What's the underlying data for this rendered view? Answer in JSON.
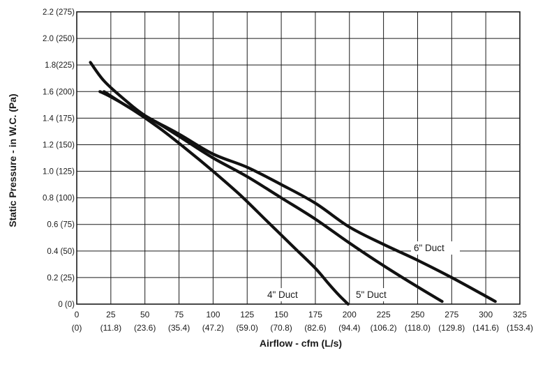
{
  "chart_data": {
    "type": "line",
    "xlabel": "Airflow - cfm (L/s)",
    "ylabel": "Static Pressure - in W.C. (Pa)",
    "xlim": [
      0,
      325
    ],
    "ylim": [
      0,
      2.2
    ],
    "grid": true,
    "x_ticks": [
      {
        "value": 0,
        "primary": "0",
        "secondary": "(0)"
      },
      {
        "value": 25,
        "primary": "25",
        "secondary": "(11.8)"
      },
      {
        "value": 50,
        "primary": "50",
        "secondary": "(23.6)"
      },
      {
        "value": 75,
        "primary": "75",
        "secondary": "(35.4)"
      },
      {
        "value": 100,
        "primary": "100",
        "secondary": "(47.2)"
      },
      {
        "value": 125,
        "primary": "125",
        "secondary": "(59.0)"
      },
      {
        "value": 150,
        "primary": "150",
        "secondary": "(70.8)"
      },
      {
        "value": 175,
        "primary": "175",
        "secondary": "(82.6)"
      },
      {
        "value": 200,
        "primary": "200",
        "secondary": "(94.4)"
      },
      {
        "value": 225,
        "primary": "225",
        "secondary": "(106.2)"
      },
      {
        "value": 250,
        "primary": "250",
        "secondary": "(118.0)"
      },
      {
        "value": 275,
        "primary": "275",
        "secondary": "(129.8)"
      },
      {
        "value": 300,
        "primary": "300",
        "secondary": "(141.6)"
      },
      {
        "value": 325,
        "primary": "325",
        "secondary": "(153.4)"
      }
    ],
    "y_ticks": [
      {
        "value": 0,
        "label": "0 (0)"
      },
      {
        "value": 0.2,
        "label": "0.2 (25)"
      },
      {
        "value": 0.4,
        "label": "0.4 (50)"
      },
      {
        "value": 0.6,
        "label": "0.6 (75)"
      },
      {
        "value": 0.8,
        "label": "0.8 (100)"
      },
      {
        "value": 1.0,
        "label": "1.0 (125)"
      },
      {
        "value": 1.2,
        "label": "1.2 (150)"
      },
      {
        "value": 1.4,
        "label": "1.4 (175)"
      },
      {
        "value": 1.6,
        "label": "1.6 (200)"
      },
      {
        "value": 1.8,
        "label": "1.8(225)"
      },
      {
        "value": 2.0,
        "label": "2.0 (250)"
      },
      {
        "value": 2.2,
        "label": "2.2 (275)"
      }
    ],
    "series": [
      {
        "name": "4\" Duct",
        "x": [
          17,
          25,
          40,
          60,
          80,
          100,
          120,
          140,
          160,
          175,
          185,
          193,
          199
        ],
        "y": [
          1.6,
          1.56,
          1.47,
          1.33,
          1.17,
          1.0,
          0.82,
          0.62,
          0.42,
          0.27,
          0.15,
          0.06,
          0.0
        ]
      },
      {
        "name": "5\" Duct",
        "x": [
          20,
          40,
          60,
          80,
          100,
          125,
          150,
          175,
          200,
          225,
          250,
          268
        ],
        "y": [
          1.6,
          1.47,
          1.36,
          1.23,
          1.1,
          0.96,
          0.8,
          0.64,
          0.46,
          0.29,
          0.13,
          0.02
        ]
      },
      {
        "name": "6\" Duct",
        "x": [
          10,
          20,
          35,
          50,
          75,
          100,
          125,
          150,
          175,
          200,
          225,
          250,
          275,
          300,
          307
        ],
        "y": [
          1.82,
          1.68,
          1.54,
          1.42,
          1.28,
          1.13,
          1.03,
          0.9,
          0.76,
          0.58,
          0.45,
          0.33,
          0.2,
          0.06,
          0.02
        ]
      }
    ]
  }
}
